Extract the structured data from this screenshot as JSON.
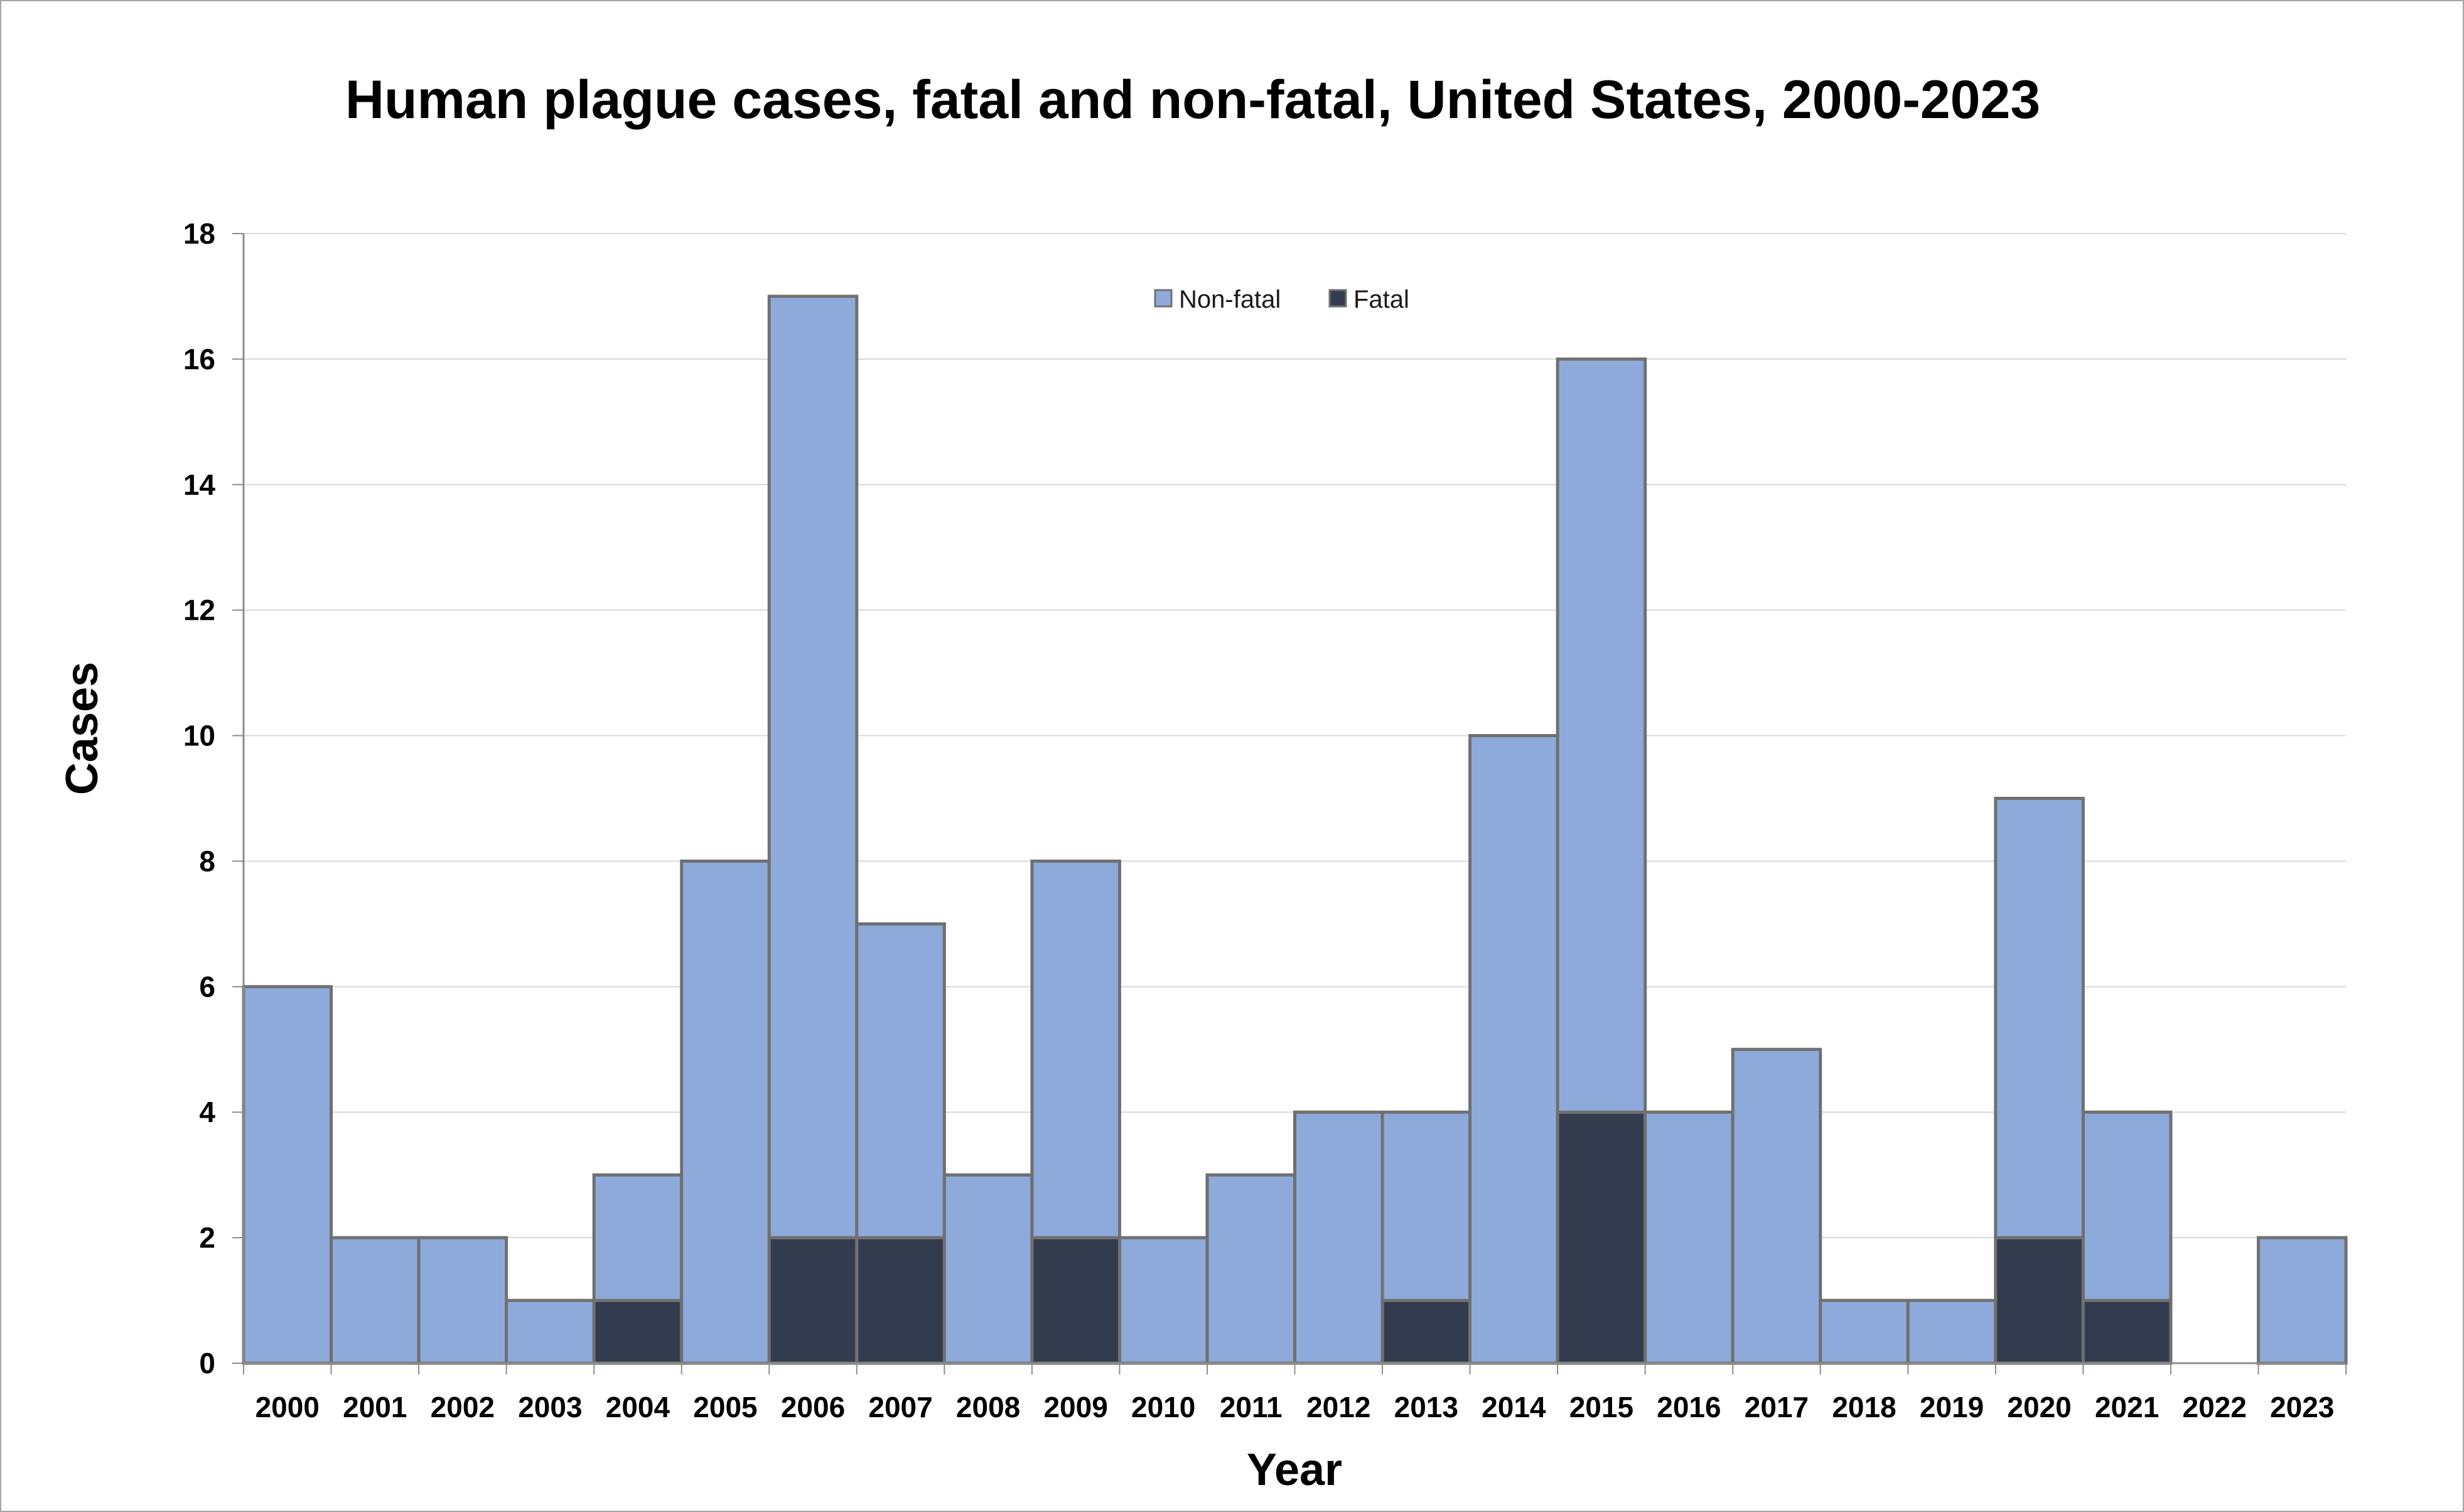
{
  "chart_data": {
    "type": "bar",
    "stacked": true,
    "title": "Human plague cases, fatal and non-fatal, United States, 2000-2023",
    "xlabel": "Year",
    "ylabel": "Cases",
    "ylim": [
      0,
      18
    ],
    "yticks": [
      0,
      2,
      4,
      6,
      8,
      10,
      12,
      14,
      16,
      18
    ],
    "grid": true,
    "legend_position": "top-center",
    "categories": [
      "2000",
      "2001",
      "2002",
      "2003",
      "2004",
      "2005",
      "2006",
      "2007",
      "2008",
      "2009",
      "2010",
      "2011",
      "2012",
      "2013",
      "2014",
      "2015",
      "2016",
      "2017",
      "2018",
      "2019",
      "2020",
      "2021",
      "2022",
      "2023"
    ],
    "series": [
      {
        "name": "Fatal",
        "color": "#323c4e",
        "values": [
          0,
          0,
          0,
          0,
          1,
          0,
          2,
          2,
          0,
          2,
          0,
          0,
          0,
          1,
          0,
          4,
          0,
          0,
          0,
          0,
          2,
          1,
          0,
          0
        ]
      },
      {
        "name": "Non-fatal",
        "color": "#8eaadb",
        "values": [
          6,
          2,
          2,
          1,
          2,
          8,
          15,
          5,
          3,
          6,
          2,
          3,
          4,
          3,
          10,
          12,
          4,
          5,
          1,
          1,
          7,
          3,
          0,
          2
        ]
      }
    ],
    "legend": [
      {
        "name": "Non-fatal",
        "color": "#8eaadb"
      },
      {
        "name": "Fatal",
        "color": "#323c4e"
      }
    ]
  }
}
